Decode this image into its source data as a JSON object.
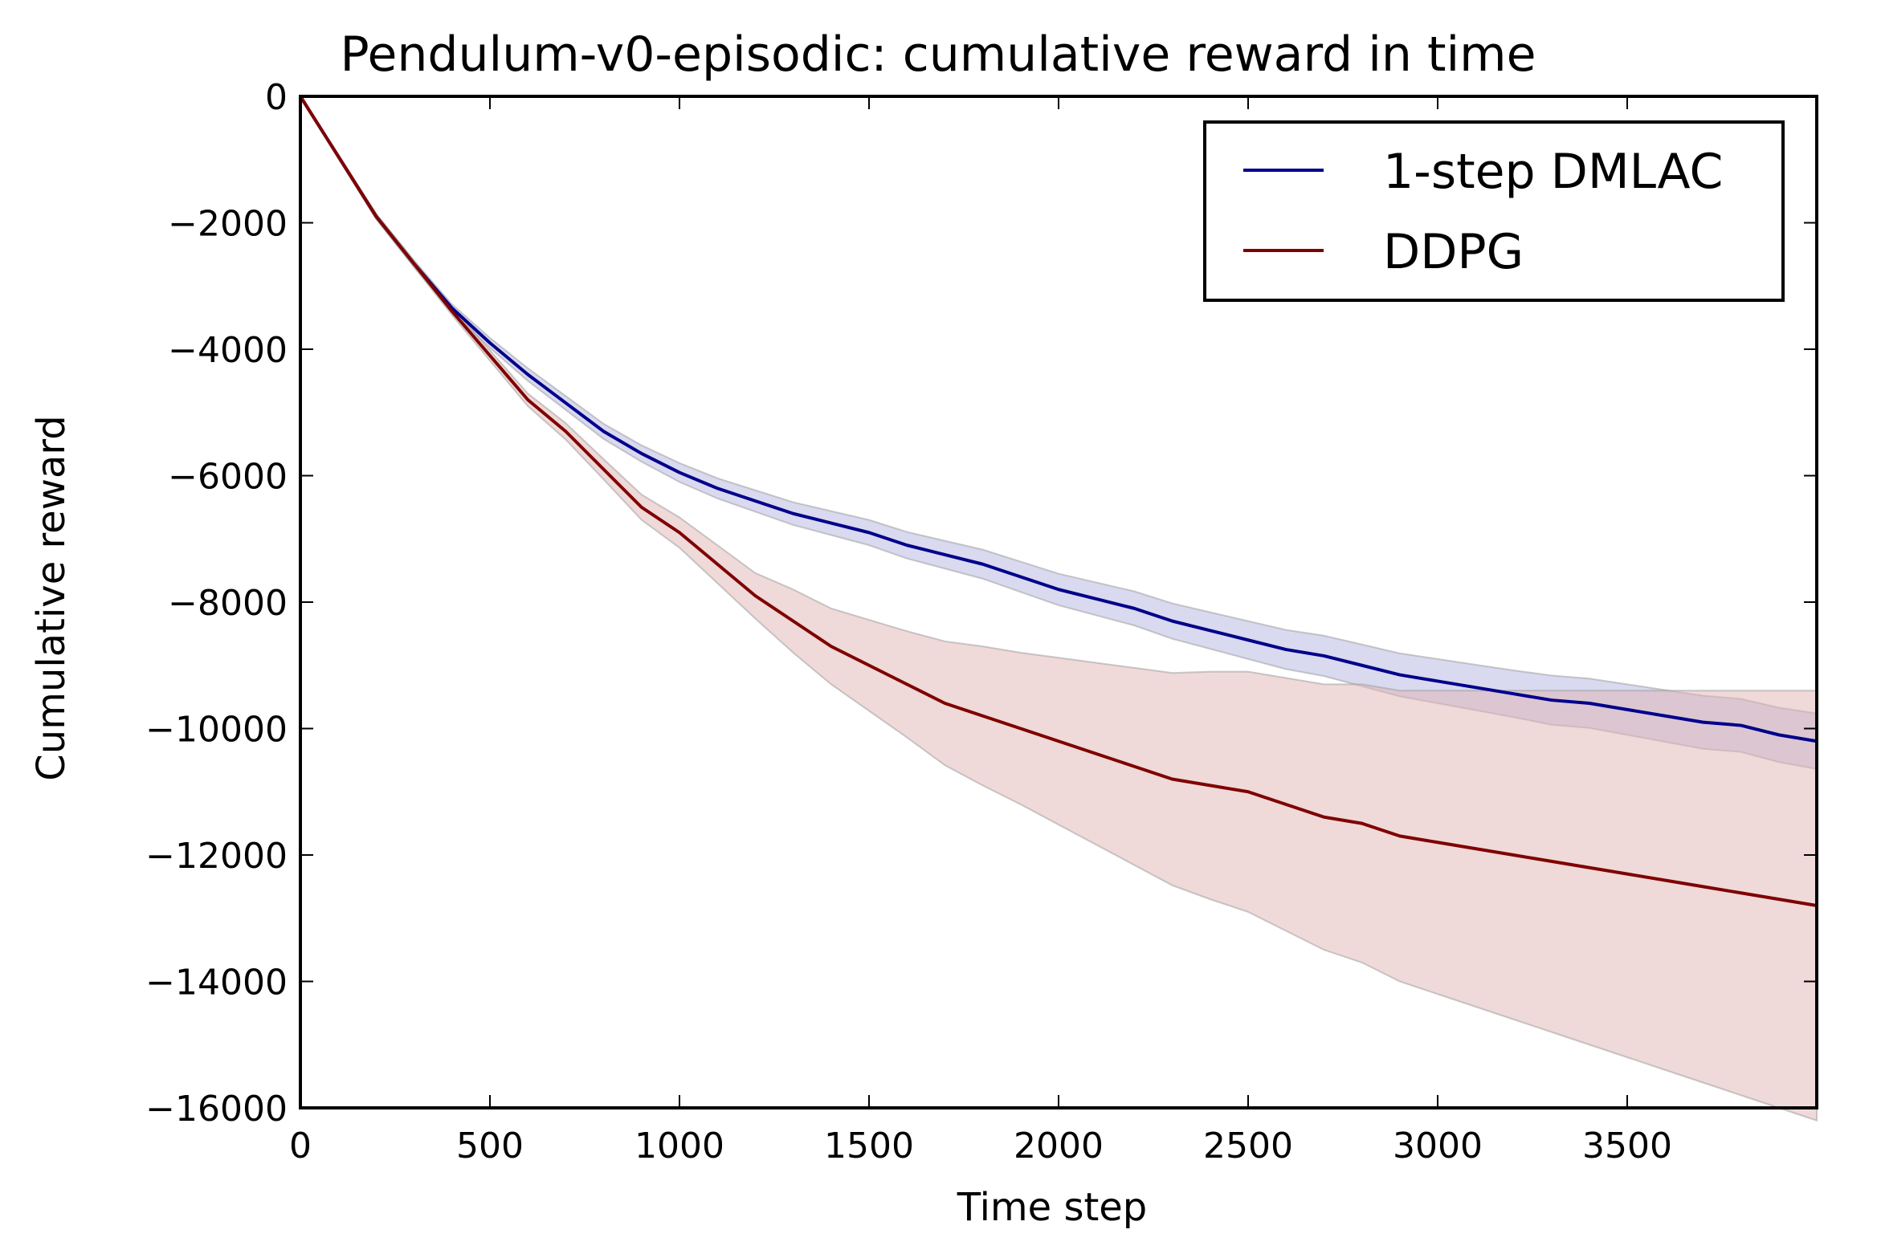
{
  "chart_data": {
    "type": "line",
    "title": "Pendulum-v0-episodic: cumulative reward in time",
    "xlabel": "Time step",
    "ylabel": "Cumulative reward",
    "xlim": [
      0,
      4000
    ],
    "ylim": [
      -16000,
      0
    ],
    "xticks": [
      0,
      500,
      1000,
      1500,
      2000,
      2500,
      3000,
      3500
    ],
    "xtick_labels": [
      "0",
      "500",
      "1000",
      "1500",
      "2000",
      "2500",
      "3000",
      "3500"
    ],
    "yticks": [
      0,
      -2000,
      -4000,
      -6000,
      -8000,
      -10000,
      -12000,
      -14000,
      -16000
    ],
    "ytick_labels": [
      "0",
      "−2000",
      "−4000",
      "−6000",
      "−8000",
      "−10000",
      "−12000",
      "−14000",
      "−16000"
    ],
    "grid": false,
    "legend_position": "top-right",
    "x": [
      0,
      100,
      200,
      300,
      400,
      500,
      600,
      700,
      800,
      900,
      1000,
      1100,
      1200,
      1300,
      1400,
      1500,
      1600,
      1700,
      1800,
      1900,
      2000,
      2100,
      2200,
      2300,
      2400,
      2500,
      2600,
      2700,
      2800,
      2900,
      3000,
      3100,
      3200,
      3300,
      3400,
      3500,
      3600,
      3700,
      3800,
      3900,
      4000
    ],
    "series": [
      {
        "name": "1-step DMLAC",
        "color": "#00008b",
        "band_color": "#b3b3e0",
        "values": [
          0,
          -950,
          -1900,
          -2650,
          -3350,
          -3900,
          -4400,
          -4850,
          -5300,
          -5650,
          -5950,
          -6200,
          -6400,
          -6600,
          -6750,
          -6900,
          -7100,
          -7250,
          -7400,
          -7600,
          -7800,
          -7950,
          -8100,
          -8300,
          -8450,
          -8600,
          -8750,
          -8850,
          -9000,
          -9150,
          -9250,
          -9350,
          -9450,
          -9550,
          -9600,
          -9700,
          -9800,
          -9900,
          -9950,
          -10100,
          -10200
        ],
        "upper": [
          0,
          -920,
          -1860,
          -2600,
          -3290,
          -3820,
          -4300,
          -4740,
          -5180,
          -5520,
          -5800,
          -6040,
          -6230,
          -6420,
          -6560,
          -6700,
          -6890,
          -7030,
          -7170,
          -7360,
          -7550,
          -7690,
          -7830,
          -8020,
          -8160,
          -8300,
          -8440,
          -8530,
          -8670,
          -8810,
          -8900,
          -8990,
          -9080,
          -9160,
          -9210,
          -9300,
          -9390,
          -9480,
          -9530,
          -9670,
          -9760
        ],
        "lower": [
          0,
          -980,
          -1940,
          -2700,
          -3410,
          -3980,
          -4500,
          -4960,
          -5420,
          -5780,
          -6100,
          -6360,
          -6570,
          -6780,
          -6940,
          -7100,
          -7310,
          -7470,
          -7630,
          -7840,
          -8050,
          -8210,
          -8370,
          -8580,
          -8740,
          -8900,
          -9060,
          -9170,
          -9330,
          -9490,
          -9600,
          -9710,
          -9820,
          -9940,
          -9990,
          -10100,
          -10210,
          -10320,
          -10370,
          -10530,
          -10640
        ]
      },
      {
        "name": "DDPG",
        "color": "#7f0000",
        "band_color": "#e0b3b3",
        "values": [
          0,
          -950,
          -1900,
          -2650,
          -3400,
          -4100,
          -4800,
          -5300,
          -5900,
          -6500,
          -6900,
          -7400,
          -7900,
          -8300,
          -8700,
          -9000,
          -9300,
          -9600,
          -9800,
          -10000,
          -10200,
          -10400,
          -10600,
          -10800,
          -10900,
          -11000,
          -11200,
          -11400,
          -11500,
          -11700,
          -11800,
          -11900,
          -12000,
          -12100,
          -12200,
          -12300,
          -12400,
          -12500,
          -12600,
          -12700,
          -12800
        ],
        "upper": [
          0,
          -930,
          -1860,
          -2600,
          -3340,
          -4020,
          -4700,
          -5170,
          -5740,
          -6300,
          -6660,
          -7100,
          -7540,
          -7800,
          -8100,
          -8280,
          -8460,
          -8620,
          -8700,
          -8800,
          -8880,
          -8960,
          -9040,
          -9120,
          -9100,
          -9100,
          -9200,
          -9300,
          -9300,
          -9400,
          -9400,
          -9400,
          -9400,
          -9400,
          -9400,
          -9400,
          -9400,
          -9400,
          -9400,
          -9400,
          -9400
        ],
        "lower": [
          0,
          -970,
          -1940,
          -2700,
          -3460,
          -4180,
          -4900,
          -5430,
          -6060,
          -6700,
          -7140,
          -7700,
          -8260,
          -8800,
          -9300,
          -9720,
          -10140,
          -10580,
          -10900,
          -11200,
          -11520,
          -11840,
          -12160,
          -12480,
          -12700,
          -12900,
          -13200,
          -13500,
          -13700,
          -14000,
          -14200,
          -14400,
          -14600,
          -14800,
          -15000,
          -15200,
          -15400,
          -15600,
          -15800,
          -16000,
          -16200
        ]
      }
    ]
  }
}
